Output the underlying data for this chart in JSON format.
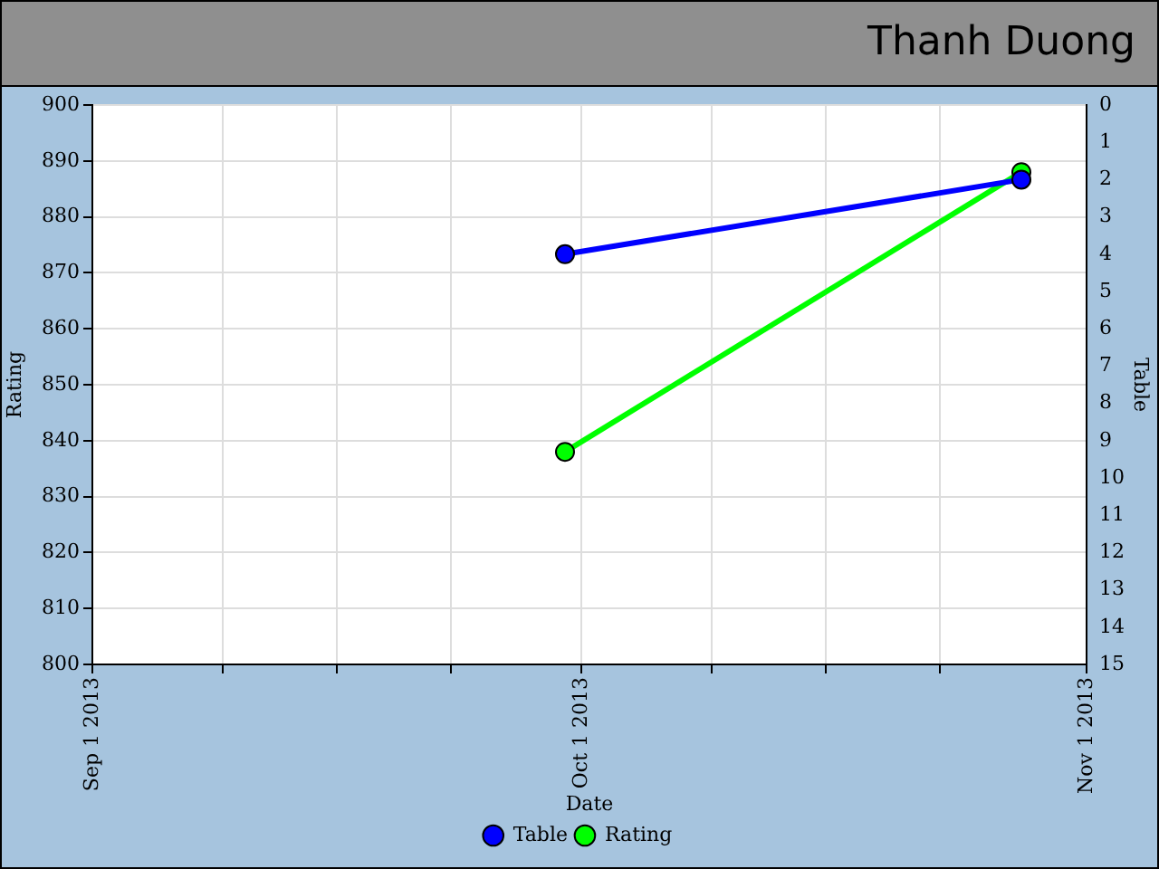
{
  "chart_data": {
    "type": "line",
    "title": "Thanh Duong",
    "xlabel": "Date",
    "ylabel": "Rating",
    "y2label": "Table",
    "x": [
      "2013-09-30",
      "2013-10-28"
    ],
    "series": [
      {
        "name": "Rating",
        "color": "#00ff00",
        "values": [
          838,
          888
        ]
      },
      {
        "name": "Table",
        "color": "#0000ff",
        "values": [
          4,
          2
        ],
        "axis": "y2"
      }
    ],
    "xlim": [
      "2013-09-01",
      "2013-11-01"
    ],
    "xticks": [
      {
        "value": "2013-09-01",
        "label": "Sep 1 2013"
      },
      {
        "value": "2013-09-09",
        "label": null
      },
      {
        "value": "2013-09-16",
        "label": null
      },
      {
        "value": "2013-09-23",
        "label": null
      },
      {
        "value": "2013-10-01",
        "label": "Oct 1 2013"
      },
      {
        "value": "2013-10-09",
        "label": null
      },
      {
        "value": "2013-10-16",
        "label": null
      },
      {
        "value": "2013-10-23",
        "label": null
      },
      {
        "value": "2013-11-01",
        "label": "Nov 1 2013"
      }
    ],
    "ylim": [
      800,
      900
    ],
    "yticks": [
      800,
      810,
      820,
      830,
      840,
      850,
      860,
      870,
      880,
      890,
      900
    ],
    "y2lim": [
      15,
      0
    ],
    "y2ticks": [
      0,
      1,
      2,
      3,
      4,
      5,
      6,
      7,
      8,
      9,
      10,
      11,
      12,
      13,
      14,
      15
    ],
    "grid": true,
    "legend": "bottom",
    "marker": "circle",
    "line_style": "solid"
  }
}
